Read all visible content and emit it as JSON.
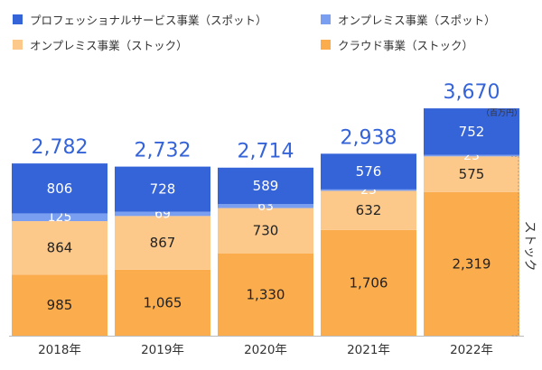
{
  "legend": [
    {
      "label": "プロフェッショナルサービス事業（スポット）",
      "color": "#3563d8"
    },
    {
      "label": "オンプレミス事業（スポット）",
      "color": "#7b9ff0"
    },
    {
      "label": "オンプレミス事業（ストック）",
      "color": "#fdc98b"
    },
    {
      "label": "クラウド事業（ストック）",
      "color": "#fbac4c"
    }
  ],
  "chart_data": {
    "type": "bar",
    "stacked": true,
    "categories": [
      "2018年",
      "2019年",
      "2020年",
      "2021年",
      "2022年"
    ],
    "series": [
      {
        "name": "クラウド事業（ストック）",
        "color": "#fbac4c",
        "values": [
          985,
          1065,
          1330,
          1706,
          2319
        ],
        "labels": [
          "985",
          "1,065",
          "1,330",
          "1,706",
          "2,319"
        ]
      },
      {
        "name": "オンプレミス事業（ストック）",
        "color": "#fdc98b",
        "values": [
          864,
          867,
          730,
          632,
          575
        ],
        "labels": [
          "864",
          "867",
          "730",
          "632",
          "575"
        ]
      },
      {
        "name": "オンプレミス事業（スポット）",
        "color": "#7b9ff0",
        "values": [
          125,
          69,
          63,
          23,
          23
        ],
        "labels": [
          "125",
          "69",
          "63",
          "23",
          "23"
        ]
      },
      {
        "name": "プロフェッショナルサービス事業（スポット）",
        "color": "#3563d8",
        "values": [
          806,
          728,
          589,
          576,
          752
        ],
        "labels": [
          "806",
          "728",
          "589",
          "576",
          "752"
        ]
      }
    ],
    "totals": [
      2782,
      2732,
      2714,
      2938,
      3670
    ],
    "total_labels": [
      "2,782",
      "2,732",
      "2,714",
      "2,938",
      "3,670"
    ],
    "unit": "（百万円）",
    "bracket_label": "ストック",
    "ylim": [
      0,
      3670
    ],
    "legend_position": "top",
    "grid": false,
    "total_label_color": "#3563d8"
  }
}
